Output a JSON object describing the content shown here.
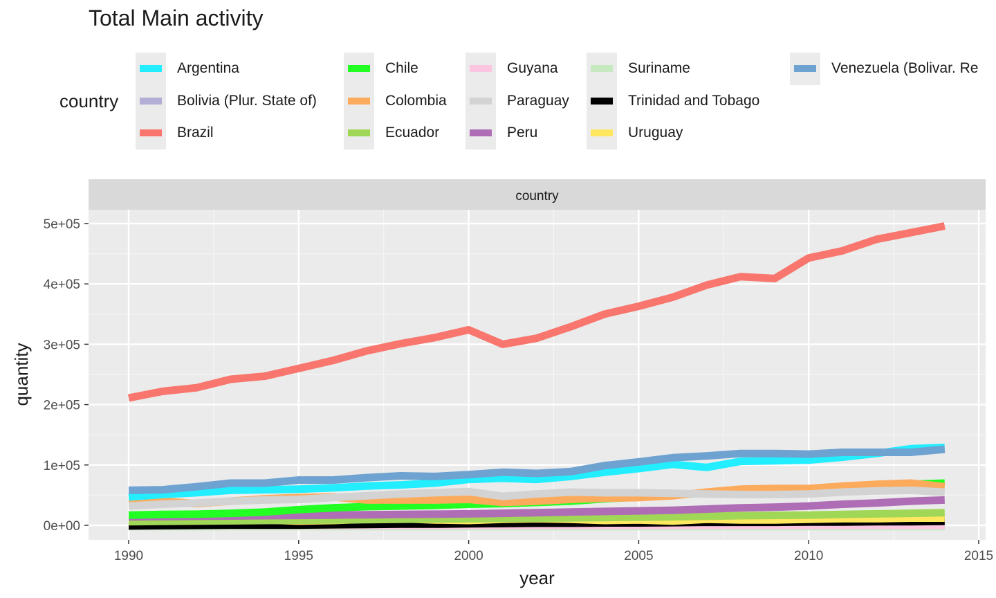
{
  "chart_data": {
    "type": "line",
    "title": "Total Main activity",
    "xlabel": "year",
    "ylabel": "quantity",
    "facet_label": "country",
    "legend_title": "country",
    "legend_position": "top",
    "grid": true,
    "xlim": [
      1990,
      2015
    ],
    "ylim": [
      -25000,
      520000
    ],
    "x_ticks": [
      1990,
      1995,
      2000,
      2005,
      2010,
      2015
    ],
    "x_tick_labels": [
      "1990",
      "1995",
      "2000",
      "2005",
      "2010",
      "2015"
    ],
    "y_ticks": [
      0,
      100000,
      200000,
      300000,
      400000,
      500000
    ],
    "y_tick_labels": [
      "0e+00",
      "1e+05",
      "2e+05",
      "3e+05",
      "4e+05",
      "5e+05"
    ],
    "x": [
      1990,
      1991,
      1992,
      1993,
      1994,
      1995,
      1996,
      1997,
      1998,
      1999,
      2000,
      2001,
      2002,
      2003,
      2004,
      2005,
      2006,
      2007,
      2008,
      2009,
      2010,
      2011,
      2012,
      2013,
      2014
    ],
    "series": [
      {
        "name": "Suriname",
        "color": "#c7e9c0",
        "values": [
          -2000,
          -2000,
          -2000,
          -2000,
          -2000,
          -2000,
          -2000,
          -2000,
          -2000,
          -2000,
          -2000,
          -2000,
          -2000,
          -2000,
          -2000,
          -2000,
          -2000,
          -2000,
          -2000,
          -2000,
          -2000,
          -2000,
          -2000,
          -2000,
          -2000
        ]
      },
      {
        "name": "Guyana",
        "color": "#fcc5e0",
        "values": [
          0,
          0,
          0,
          0,
          0,
          0,
          0,
          0,
          0,
          0,
          0,
          0,
          0,
          0,
          0,
          0,
          0,
          0,
          0,
          0,
          0,
          0,
          0,
          0,
          0
        ]
      },
      {
        "name": "Bolivia (Plur. State of)",
        "color": "#b3aed5",
        "values": [
          2000,
          2000,
          2500,
          2500,
          3000,
          3000,
          3500,
          3500,
          4000,
          4000,
          4500,
          4500,
          5000,
          5000,
          5500,
          5500,
          6000,
          6500,
          7000,
          7000,
          7500,
          8000,
          8500,
          9000,
          9500
        ]
      },
      {
        "name": "Trinidad and Tobago",
        "color": "#000000",
        "values": [
          -1000,
          -500,
          0,
          500,
          500,
          500,
          1000,
          1500,
          2000,
          2000,
          2500,
          3000,
          3500,
          3500,
          4000,
          4000,
          4500,
          5000,
          5000,
          5000,
          5500,
          5500,
          6000,
          6000,
          6500
        ]
      },
      {
        "name": "Uruguay",
        "color": "#ffe760",
        "values": [
          8000,
          9000,
          10000,
          10000,
          9000,
          7000,
          8000,
          10000,
          11000,
          9000,
          8000,
          10000,
          11000,
          10000,
          8000,
          9000,
          7000,
          10000,
          9000,
          9000,
          10000,
          11000,
          11000,
          12000,
          12000
        ]
      },
      {
        "name": "Ecuador",
        "color": "#a1d756",
        "values": [
          6000,
          6500,
          7000,
          7500,
          8000,
          8500,
          9000,
          9500,
          10000,
          10500,
          11000,
          11500,
          12000,
          12500,
          13000,
          13500,
          14000,
          15000,
          16000,
          16500,
          17000,
          18000,
          19000,
          20000,
          21000
        ]
      },
      {
        "name": "Peru",
        "color": "#ae6db5",
        "values": [
          14000,
          14500,
          15000,
          15500,
          16000,
          16500,
          17000,
          17500,
          18000,
          18500,
          19000,
          20000,
          21000,
          22000,
          23000,
          24000,
          25000,
          27000,
          29000,
          30000,
          32000,
          35000,
          37000,
          40000,
          42000
        ]
      },
      {
        "name": "Chile",
        "color": "#22ff22",
        "values": [
          17000,
          18000,
          18500,
          20000,
          22000,
          26000,
          29000,
          31000,
          32000,
          33000,
          35000,
          36000,
          38000,
          40000,
          44000,
          47000,
          50000,
          54000,
          57000,
          58000,
          60000,
          63000,
          66000,
          68000,
          70000
        ]
      },
      {
        "name": "Colombia",
        "color": "#fcab5c",
        "values": [
          39000,
          40000,
          36000,
          40000,
          44000,
          46000,
          47000,
          42000,
          42000,
          42000,
          43000,
          38000,
          40000,
          43000,
          45000,
          46000,
          49000,
          55000,
          60000,
          61000,
          61000,
          65000,
          68000,
          70000,
          64000
        ]
      },
      {
        "name": "Paraguay",
        "color": "#d3d3d3",
        "values": [
          32000,
          35000,
          37000,
          40000,
          42000,
          43000,
          46000,
          49000,
          52000,
          54000,
          56000,
          48000,
          52000,
          55000,
          54000,
          54000,
          53000,
          52000,
          51000,
          51000,
          52000,
          55000,
          57000,
          58000,
          55000
        ]
      },
      {
        "name": "Argentina",
        "color": "#22eeff",
        "values": [
          47000,
          51000,
          54000,
          58000,
          59000,
          60000,
          62000,
          65000,
          67000,
          70000,
          76000,
          78000,
          76000,
          81000,
          88000,
          94000,
          101000,
          96000,
          106000,
          107000,
          108000,
          113000,
          119000,
          127000,
          129000
        ]
      },
      {
        "name": "Venezuela (Bolivar. Rep.)",
        "color": "#6ea2d0",
        "values": [
          58000,
          59000,
          64000,
          70000,
          70000,
          75000,
          75000,
          79000,
          82000,
          81000,
          84000,
          88000,
          86000,
          89000,
          99000,
          105000,
          112000,
          115000,
          119000,
          119000,
          118000,
          121000,
          121000,
          121000,
          126000
        ]
      },
      {
        "name": "Brazil",
        "color": "#f8766d",
        "values": [
          211000,
          222000,
          228000,
          242000,
          247000,
          260000,
          273000,
          289000,
          301000,
          311000,
          324000,
          300000,
          310000,
          329000,
          350000,
          363000,
          378000,
          398000,
          412000,
          409000,
          443000,
          455000,
          474000,
          485000,
          496000
        ]
      }
    ],
    "legend_columns": [
      [
        "Argentina",
        "Bolivia (Plur. State of)",
        "Brazil"
      ],
      [
        "Chile",
        "Colombia",
        "Ecuador"
      ],
      [
        "Guyana",
        "Paraguay",
        "Peru"
      ],
      [
        "Suriname",
        "Trinidad and Tobago",
        "Uruguay"
      ],
      [
        "Venezuela (Bolivar. Re"
      ]
    ]
  }
}
